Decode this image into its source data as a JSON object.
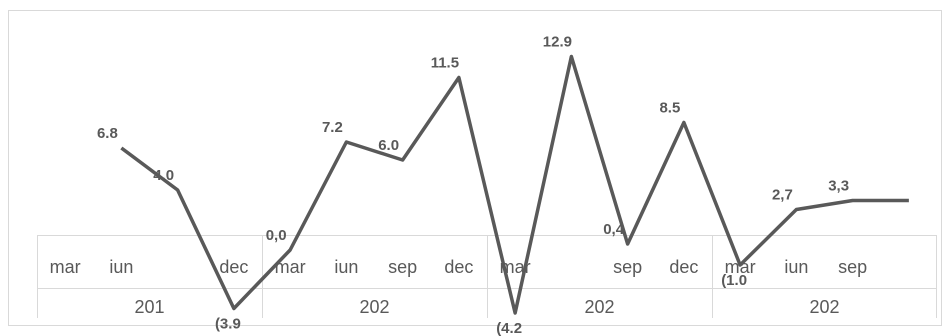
{
  "chart_data": {
    "type": "line",
    "categories": [
      "mar",
      "iun",
      null,
      "dec",
      "mar",
      "iun",
      "sep",
      "dec",
      "mar",
      null,
      "sep",
      "dec",
      "mar",
      "iun",
      "sep",
      null
    ],
    "groups": [
      "201",
      "202",
      "202",
      "202"
    ],
    "series": [
      {
        "color": "#595959",
        "values": [
          null,
          6.8,
          4.0,
          -3.9,
          0.0,
          7.2,
          6.0,
          11.5,
          -4.2,
          12.9,
          0.4,
          8.5,
          -1.0,
          2.7,
          3.3,
          3.3
        ],
        "value_labels": [
          null,
          "6.8",
          "4.0",
          "(3.9",
          "0,0",
          "7.2",
          "6.0",
          "11.5",
          "(4.2",
          "12.9",
          "0,4",
          "8.5",
          "(1.0",
          "2,7",
          "3,3",
          null
        ]
      }
    ]
  }
}
